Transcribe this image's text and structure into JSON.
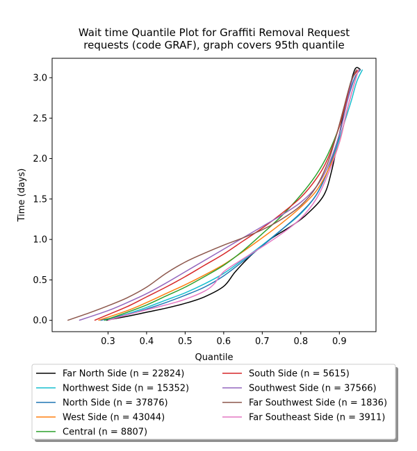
{
  "chart_data": {
    "type": "line",
    "title": "Wait time Quantile Plot for Graffiti Removal Request\nrequests (code GRAF), graph covers 95th quantile",
    "xlabel": "Quantile",
    "ylabel": "Time (days)",
    "xlim": [
      0.155,
      0.995
    ],
    "ylim": [
      -0.14,
      3.24
    ],
    "xticks": [
      0.3,
      0.4,
      0.5,
      0.6,
      0.7,
      0.8,
      0.9
    ],
    "yticks": [
      0.0,
      0.5,
      1.0,
      1.5,
      2.0,
      2.5,
      3.0
    ],
    "xtick_labels": [
      "0.3",
      "0.4",
      "0.5",
      "0.6",
      "0.7",
      "0.8",
      "0.9"
    ],
    "ytick_labels": [
      "0.0",
      "0.5",
      "1.0",
      "1.5",
      "2.0",
      "2.5",
      "3.0"
    ],
    "grid": false,
    "legend_placement": "below-plot",
    "series": [
      {
        "name": "Far North Side (n = 22824)",
        "color": "#000000",
        "x": [
          0.295,
          0.35,
          0.4,
          0.45,
          0.5,
          0.55,
          0.6,
          0.63,
          0.67,
          0.72,
          0.78,
          0.82,
          0.86,
          0.88,
          0.9,
          0.92,
          0.94,
          0.955
        ],
        "y": [
          0.0,
          0.05,
          0.1,
          0.15,
          0.21,
          0.29,
          0.42,
          0.6,
          0.8,
          1.0,
          1.18,
          1.33,
          1.55,
          1.85,
          2.3,
          2.75,
          3.1,
          3.1
        ]
      },
      {
        "name": "Northwest Side (n = 15352)",
        "color": "#17becf",
        "x": [
          0.29,
          0.35,
          0.4,
          0.45,
          0.5,
          0.55,
          0.6,
          0.65,
          0.7,
          0.75,
          0.8,
          0.84,
          0.87,
          0.89,
          0.91,
          0.93,
          0.945,
          0.96
        ],
        "y": [
          0.0,
          0.08,
          0.16,
          0.25,
          0.34,
          0.45,
          0.58,
          0.75,
          0.93,
          1.12,
          1.32,
          1.55,
          1.85,
          2.1,
          2.4,
          2.7,
          2.95,
          3.1
        ]
      },
      {
        "name": "North Side (n = 37876)",
        "color": "#1f77b4",
        "x": [
          0.28,
          0.35,
          0.4,
          0.45,
          0.5,
          0.55,
          0.6,
          0.65,
          0.7,
          0.75,
          0.8,
          0.84,
          0.87,
          0.9,
          0.92,
          0.94,
          0.955
        ],
        "y": [
          0.0,
          0.07,
          0.14,
          0.22,
          0.31,
          0.41,
          0.55,
          0.73,
          0.92,
          1.12,
          1.33,
          1.55,
          1.85,
          2.3,
          2.7,
          3.0,
          3.1
        ]
      },
      {
        "name": "West Side (n = 43044)",
        "color": "#ff7f0e",
        "x": [
          0.275,
          0.35,
          0.4,
          0.45,
          0.5,
          0.55,
          0.6,
          0.65,
          0.7,
          0.75,
          0.8,
          0.84,
          0.87,
          0.9,
          0.92,
          0.94,
          0.95
        ],
        "y": [
          0.0,
          0.12,
          0.22,
          0.33,
          0.44,
          0.56,
          0.69,
          0.85,
          1.02,
          1.2,
          1.4,
          1.6,
          1.85,
          2.2,
          2.6,
          2.95,
          3.1
        ]
      },
      {
        "name": "Central (n = 8807)",
        "color": "#2ca02c",
        "x": [
          0.29,
          0.35,
          0.4,
          0.45,
          0.5,
          0.55,
          0.6,
          0.65,
          0.7,
          0.75,
          0.8,
          0.84,
          0.87,
          0.9,
          0.92,
          0.93,
          0.945
        ],
        "y": [
          0.0,
          0.1,
          0.19,
          0.3,
          0.41,
          0.54,
          0.68,
          0.86,
          1.07,
          1.29,
          1.55,
          1.8,
          2.05,
          2.4,
          2.75,
          2.95,
          3.1
        ]
      },
      {
        "name": "South Side (n = 5615)",
        "color": "#d62728",
        "x": [
          0.265,
          0.3,
          0.35,
          0.4,
          0.45,
          0.5,
          0.55,
          0.6,
          0.65,
          0.7,
          0.75,
          0.8,
          0.84,
          0.87,
          0.9,
          0.92,
          0.935,
          0.95
        ],
        "y": [
          0.0,
          0.07,
          0.17,
          0.29,
          0.41,
          0.54,
          0.68,
          0.82,
          0.98,
          1.14,
          1.32,
          1.52,
          1.75,
          2.0,
          2.4,
          2.75,
          3.0,
          3.1
        ]
      },
      {
        "name": "Southwest Side (n = 37566)",
        "color": "#9467bd",
        "x": [
          0.225,
          0.3,
          0.35,
          0.4,
          0.45,
          0.5,
          0.55,
          0.6,
          0.65,
          0.7,
          0.75,
          0.8,
          0.84,
          0.87,
          0.9,
          0.92,
          0.935,
          0.945
        ],
        "y": [
          0.0,
          0.12,
          0.22,
          0.33,
          0.46,
          0.6,
          0.74,
          0.88,
          1.02,
          1.16,
          1.3,
          1.46,
          1.65,
          1.9,
          2.3,
          2.7,
          3.0,
          3.1
        ]
      },
      {
        "name": "Far Southwest Side (n = 1836)",
        "color": "#8c564b",
        "x": [
          0.195,
          0.25,
          0.3,
          0.35,
          0.4,
          0.45,
          0.5,
          0.55,
          0.6,
          0.65,
          0.7,
          0.75,
          0.8,
          0.84,
          0.87,
          0.89,
          0.91,
          0.93,
          0.945
        ],
        "y": [
          0.0,
          0.09,
          0.18,
          0.28,
          0.41,
          0.58,
          0.72,
          0.83,
          0.93,
          1.02,
          1.12,
          1.25,
          1.42,
          1.65,
          1.95,
          2.25,
          2.6,
          2.95,
          3.1
        ]
      },
      {
        "name": "Far Southeast Side (n = 3911)",
        "color": "#e377c2",
        "x": [
          0.3,
          0.35,
          0.4,
          0.45,
          0.5,
          0.55,
          0.575,
          0.6,
          0.65,
          0.7,
          0.75,
          0.8,
          0.84,
          0.87,
          0.9,
          0.92,
          0.94,
          0.95
        ],
        "y": [
          0.0,
          0.07,
          0.13,
          0.19,
          0.26,
          0.36,
          0.45,
          0.6,
          0.76,
          0.91,
          1.07,
          1.26,
          1.5,
          1.8,
          2.2,
          2.6,
          2.95,
          3.1
        ]
      }
    ]
  }
}
